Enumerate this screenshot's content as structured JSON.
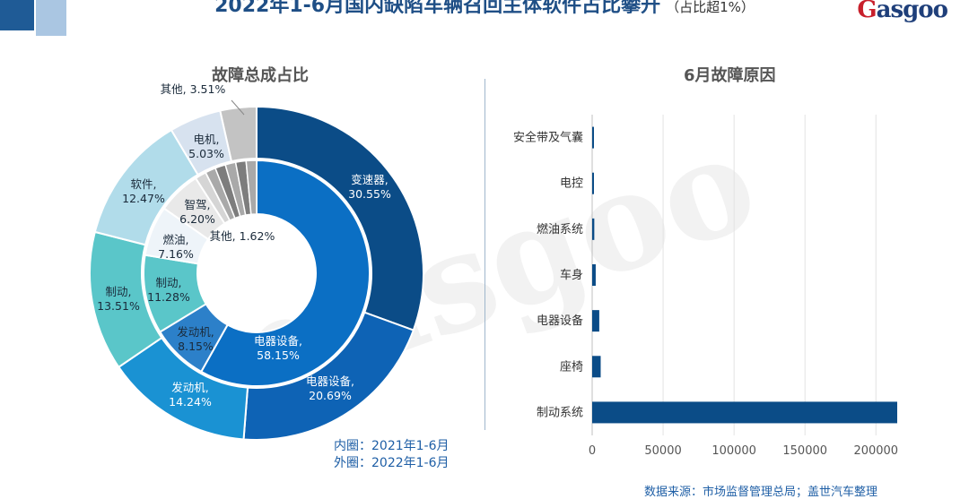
{
  "header": {
    "title": "2022年1-6月国内缺陷车辆召回主体软件占比攀升",
    "subtitle": "（占比超1%）",
    "logo_text": "asgoo"
  },
  "watermark": "gasgoo",
  "colors": {
    "outer": [
      "#0b4c87",
      "#0e63b5",
      "#1a92d3",
      "#5ac6c9",
      "#b1dcea",
      "#d7e2ef",
      "#c3c3c3"
    ],
    "inner": [
      "#0b6fc4",
      "#2c80c9",
      "#5ac6c9",
      "#eef4f9",
      "#e9e9e9",
      "#d5d5d5",
      "#cfcfcf"
    ],
    "bar": "#0b4c87"
  },
  "legend_note": {
    "inner": "内圈：2021年1-6月",
    "outer": "外圈：2022年1-6月"
  },
  "source": "数据来源：市场监督管理总局；盖世汽车整理",
  "chart_data": [
    {
      "type": "pie",
      "title": "故障总成占比",
      "rings": [
        {
          "ring": "outer",
          "period": "2022年1-6月",
          "slices": [
            {
              "label": "变速器",
              "value": 30.55,
              "text": "30.55%"
            },
            {
              "label": "电器设备",
              "value": 20.69,
              "text": "20.69%"
            },
            {
              "label": "发动机",
              "value": 14.24,
              "text": "14.24%"
            },
            {
              "label": "制动",
              "value": 13.51,
              "text": "13.51%"
            },
            {
              "label": "软件",
              "value": 12.47,
              "text": "12.47%"
            },
            {
              "label": "电机",
              "value": 5.03,
              "text": "5.03%"
            },
            {
              "label": "其他",
              "value": 3.51,
              "text": "3.51%"
            }
          ]
        },
        {
          "ring": "inner",
          "period": "2021年1-6月",
          "slices": [
            {
              "label": "电器设备",
              "value": 58.15,
              "text": "58.15%"
            },
            {
              "label": "发动机",
              "value": 8.15,
              "text": "8.15%"
            },
            {
              "label": "制动",
              "value": 11.28,
              "text": "11.28%"
            },
            {
              "label": "燃油",
              "value": 7.16,
              "text": "7.16%"
            },
            {
              "label": "智驾",
              "value": 6.2,
              "text": "6.20%"
            },
            {
              "label": "其他",
              "value": 1.62,
              "text": "1.62%"
            },
            {
              "label": "",
              "value": 7.44,
              "text": ""
            }
          ]
        }
      ]
    },
    {
      "type": "bar",
      "orientation": "horizontal",
      "title": "6月故障原因",
      "categories": [
        "安全带及气囊",
        "电控",
        "燃油系统",
        "车身",
        "电器设备",
        "座椅",
        "制动系统"
      ],
      "values": [
        150,
        800,
        1500,
        2500,
        5000,
        6000,
        215000
      ],
      "xlim": [
        0,
        215000
      ],
      "xticks": [
        "0",
        "50000",
        "100000",
        "150000",
        "200000"
      ],
      "grid": true
    }
  ]
}
